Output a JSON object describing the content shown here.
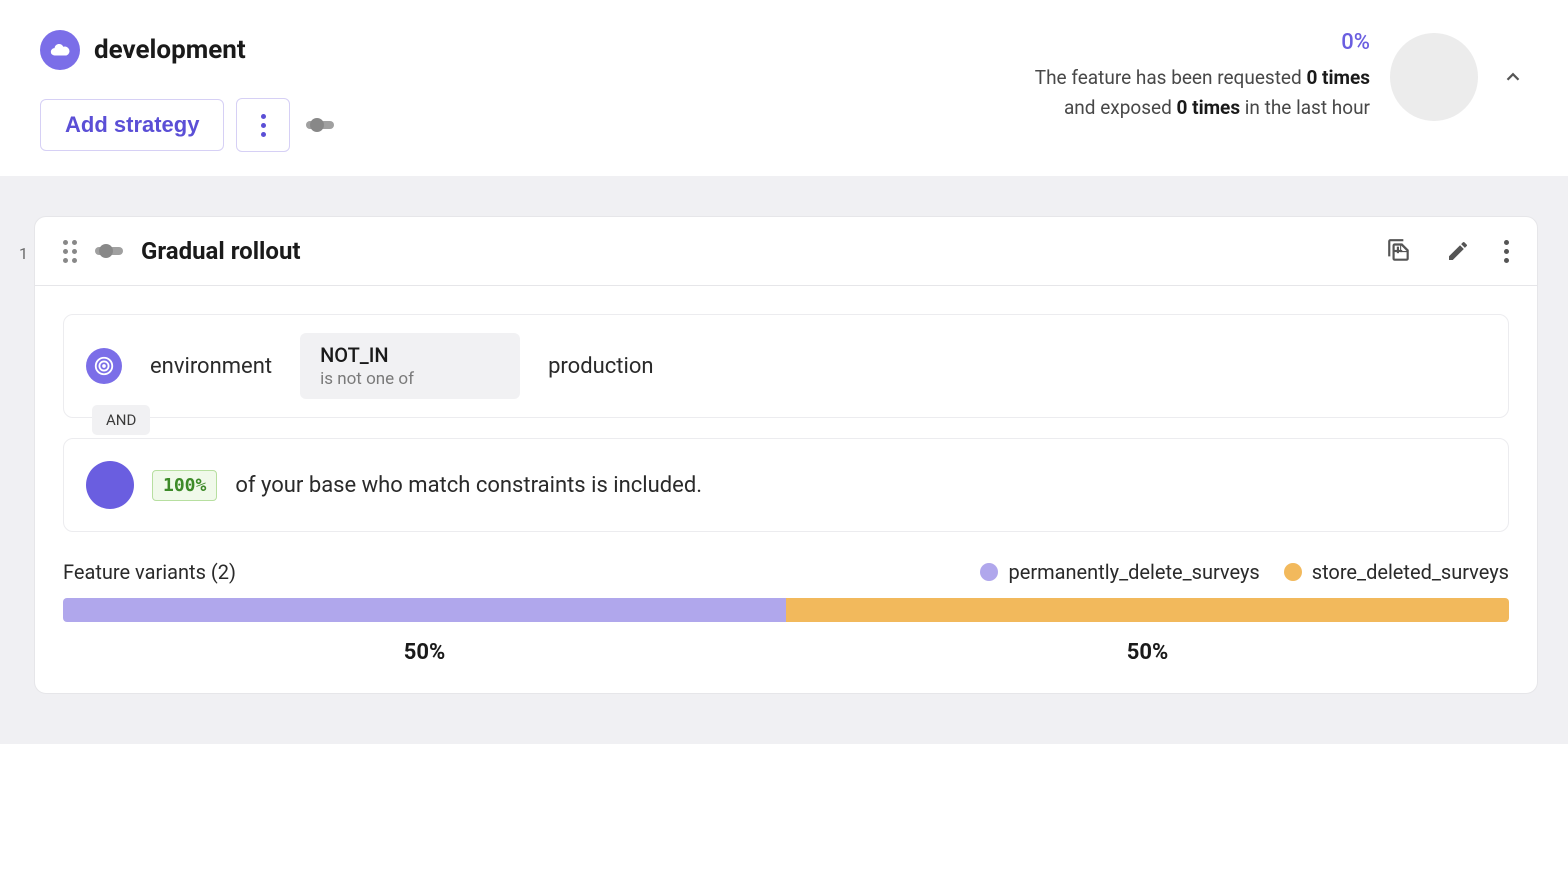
{
  "colors": {
    "accent": "#6a5ee0",
    "accent_light": "#7b6ee8",
    "border_light": "#d6d0f5",
    "bg_grey": "#f0f0f3",
    "chip_grey": "#f1f1f3",
    "green_bg": "#f0f9ea",
    "green_border": "#b7dfa0",
    "green_text": "#3d8a28"
  },
  "header": {
    "env_name": "development",
    "add_strategy_label": "Add strategy",
    "stats_pct": "0%",
    "requested_count": "0 times",
    "exposed_count": "0 times",
    "stats_prefix": "The feature has been requested ",
    "stats_mid": "and exposed ",
    "stats_suffix": " in the last hour"
  },
  "strategy": {
    "index": "1",
    "title": "Gradual rollout",
    "constraint": {
      "field": "environment",
      "operator": "NOT_IN",
      "operator_desc": "is not one of",
      "value": "production",
      "join": "AND"
    },
    "rollout": {
      "pct": "100%",
      "text": "of your base who match constraints is included."
    },
    "variants": {
      "title_prefix": "Feature variants (",
      "count": "2",
      "title_suffix": ")",
      "items": [
        {
          "name": "permanently_delete_surveys",
          "color": "#b0a7ec",
          "pct": 50,
          "label": "50%"
        },
        {
          "name": "store_deleted_surveys",
          "color": "#f2b95c",
          "pct": 50,
          "label": "50%"
        }
      ]
    }
  }
}
